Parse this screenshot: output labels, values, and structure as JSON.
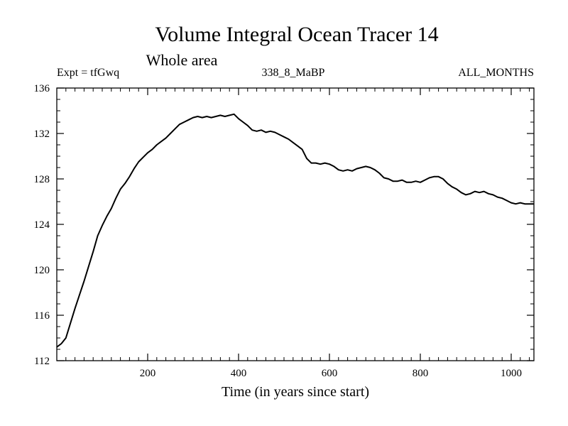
{
  "chart_data": {
    "type": "line",
    "title": "Volume Integral Ocean Tracer 14",
    "subtitle": "Whole area",
    "annotations": {
      "left": "Expt = tfGwq",
      "center": "338_8_MaBP",
      "right": "ALL_MONTHS"
    },
    "xlabel": "Time (in years since start)",
    "ylabel": "",
    "xlim": [
      0,
      1050
    ],
    "ylim": [
      112,
      136
    ],
    "xticks": [
      200,
      400,
      600,
      800,
      1000
    ],
    "yticks": [
      112,
      116,
      120,
      124,
      128,
      132,
      136
    ],
    "grid": false,
    "line_color": "#000000",
    "series": [
      {
        "x": [
          0,
          10,
          20,
          30,
          40,
          50,
          60,
          70,
          80,
          90,
          100,
          110,
          120,
          130,
          140,
          150,
          160,
          170,
          180,
          190,
          200,
          210,
          220,
          230,
          240,
          250,
          260,
          270,
          280,
          290,
          300,
          310,
          320,
          330,
          340,
          350,
          360,
          370,
          380,
          390,
          400,
          410,
          420,
          430,
          440,
          450,
          460,
          470,
          480,
          490,
          500,
          510,
          520,
          530,
          540,
          550,
          560,
          570,
          580,
          590,
          600,
          610,
          620,
          630,
          640,
          650,
          660,
          670,
          680,
          690,
          700,
          710,
          720,
          730,
          740,
          750,
          760,
          770,
          780,
          790,
          800,
          810,
          820,
          830,
          840,
          850,
          860,
          870,
          880,
          890,
          900,
          910,
          920,
          930,
          940,
          950,
          960,
          970,
          980,
          990,
          1000,
          1010,
          1020,
          1030,
          1040,
          1050
        ],
        "values": [
          113.2,
          113.5,
          114.0,
          115.3,
          116.6,
          117.8,
          119.0,
          120.3,
          121.6,
          123.0,
          123.9,
          124.7,
          125.4,
          126.3,
          127.1,
          127.6,
          128.2,
          128.9,
          129.5,
          129.9,
          130.3,
          130.6,
          131.0,
          131.3,
          131.6,
          132.0,
          132.4,
          132.8,
          133.0,
          133.2,
          133.4,
          133.5,
          133.4,
          133.5,
          133.4,
          133.5,
          133.6,
          133.5,
          133.6,
          133.7,
          133.3,
          133.0,
          132.7,
          132.3,
          132.2,
          132.3,
          132.1,
          132.2,
          132.1,
          131.9,
          131.7,
          131.5,
          131.2,
          130.9,
          130.6,
          129.8,
          129.4,
          129.4,
          129.3,
          129.4,
          129.3,
          129.1,
          128.8,
          128.7,
          128.8,
          128.7,
          128.9,
          129.0,
          129.1,
          129.0,
          128.8,
          128.5,
          128.1,
          128.0,
          127.8,
          127.8,
          127.9,
          127.7,
          127.7,
          127.8,
          127.7,
          127.9,
          128.1,
          128.2,
          128.2,
          128.0,
          127.6,
          127.3,
          127.1,
          126.8,
          126.6,
          126.7,
          126.9,
          126.8,
          126.9,
          126.7,
          126.6,
          126.4,
          126.3,
          126.1,
          125.9,
          125.8,
          125.9,
          125.8,
          125.8,
          125.8
        ]
      }
    ]
  }
}
